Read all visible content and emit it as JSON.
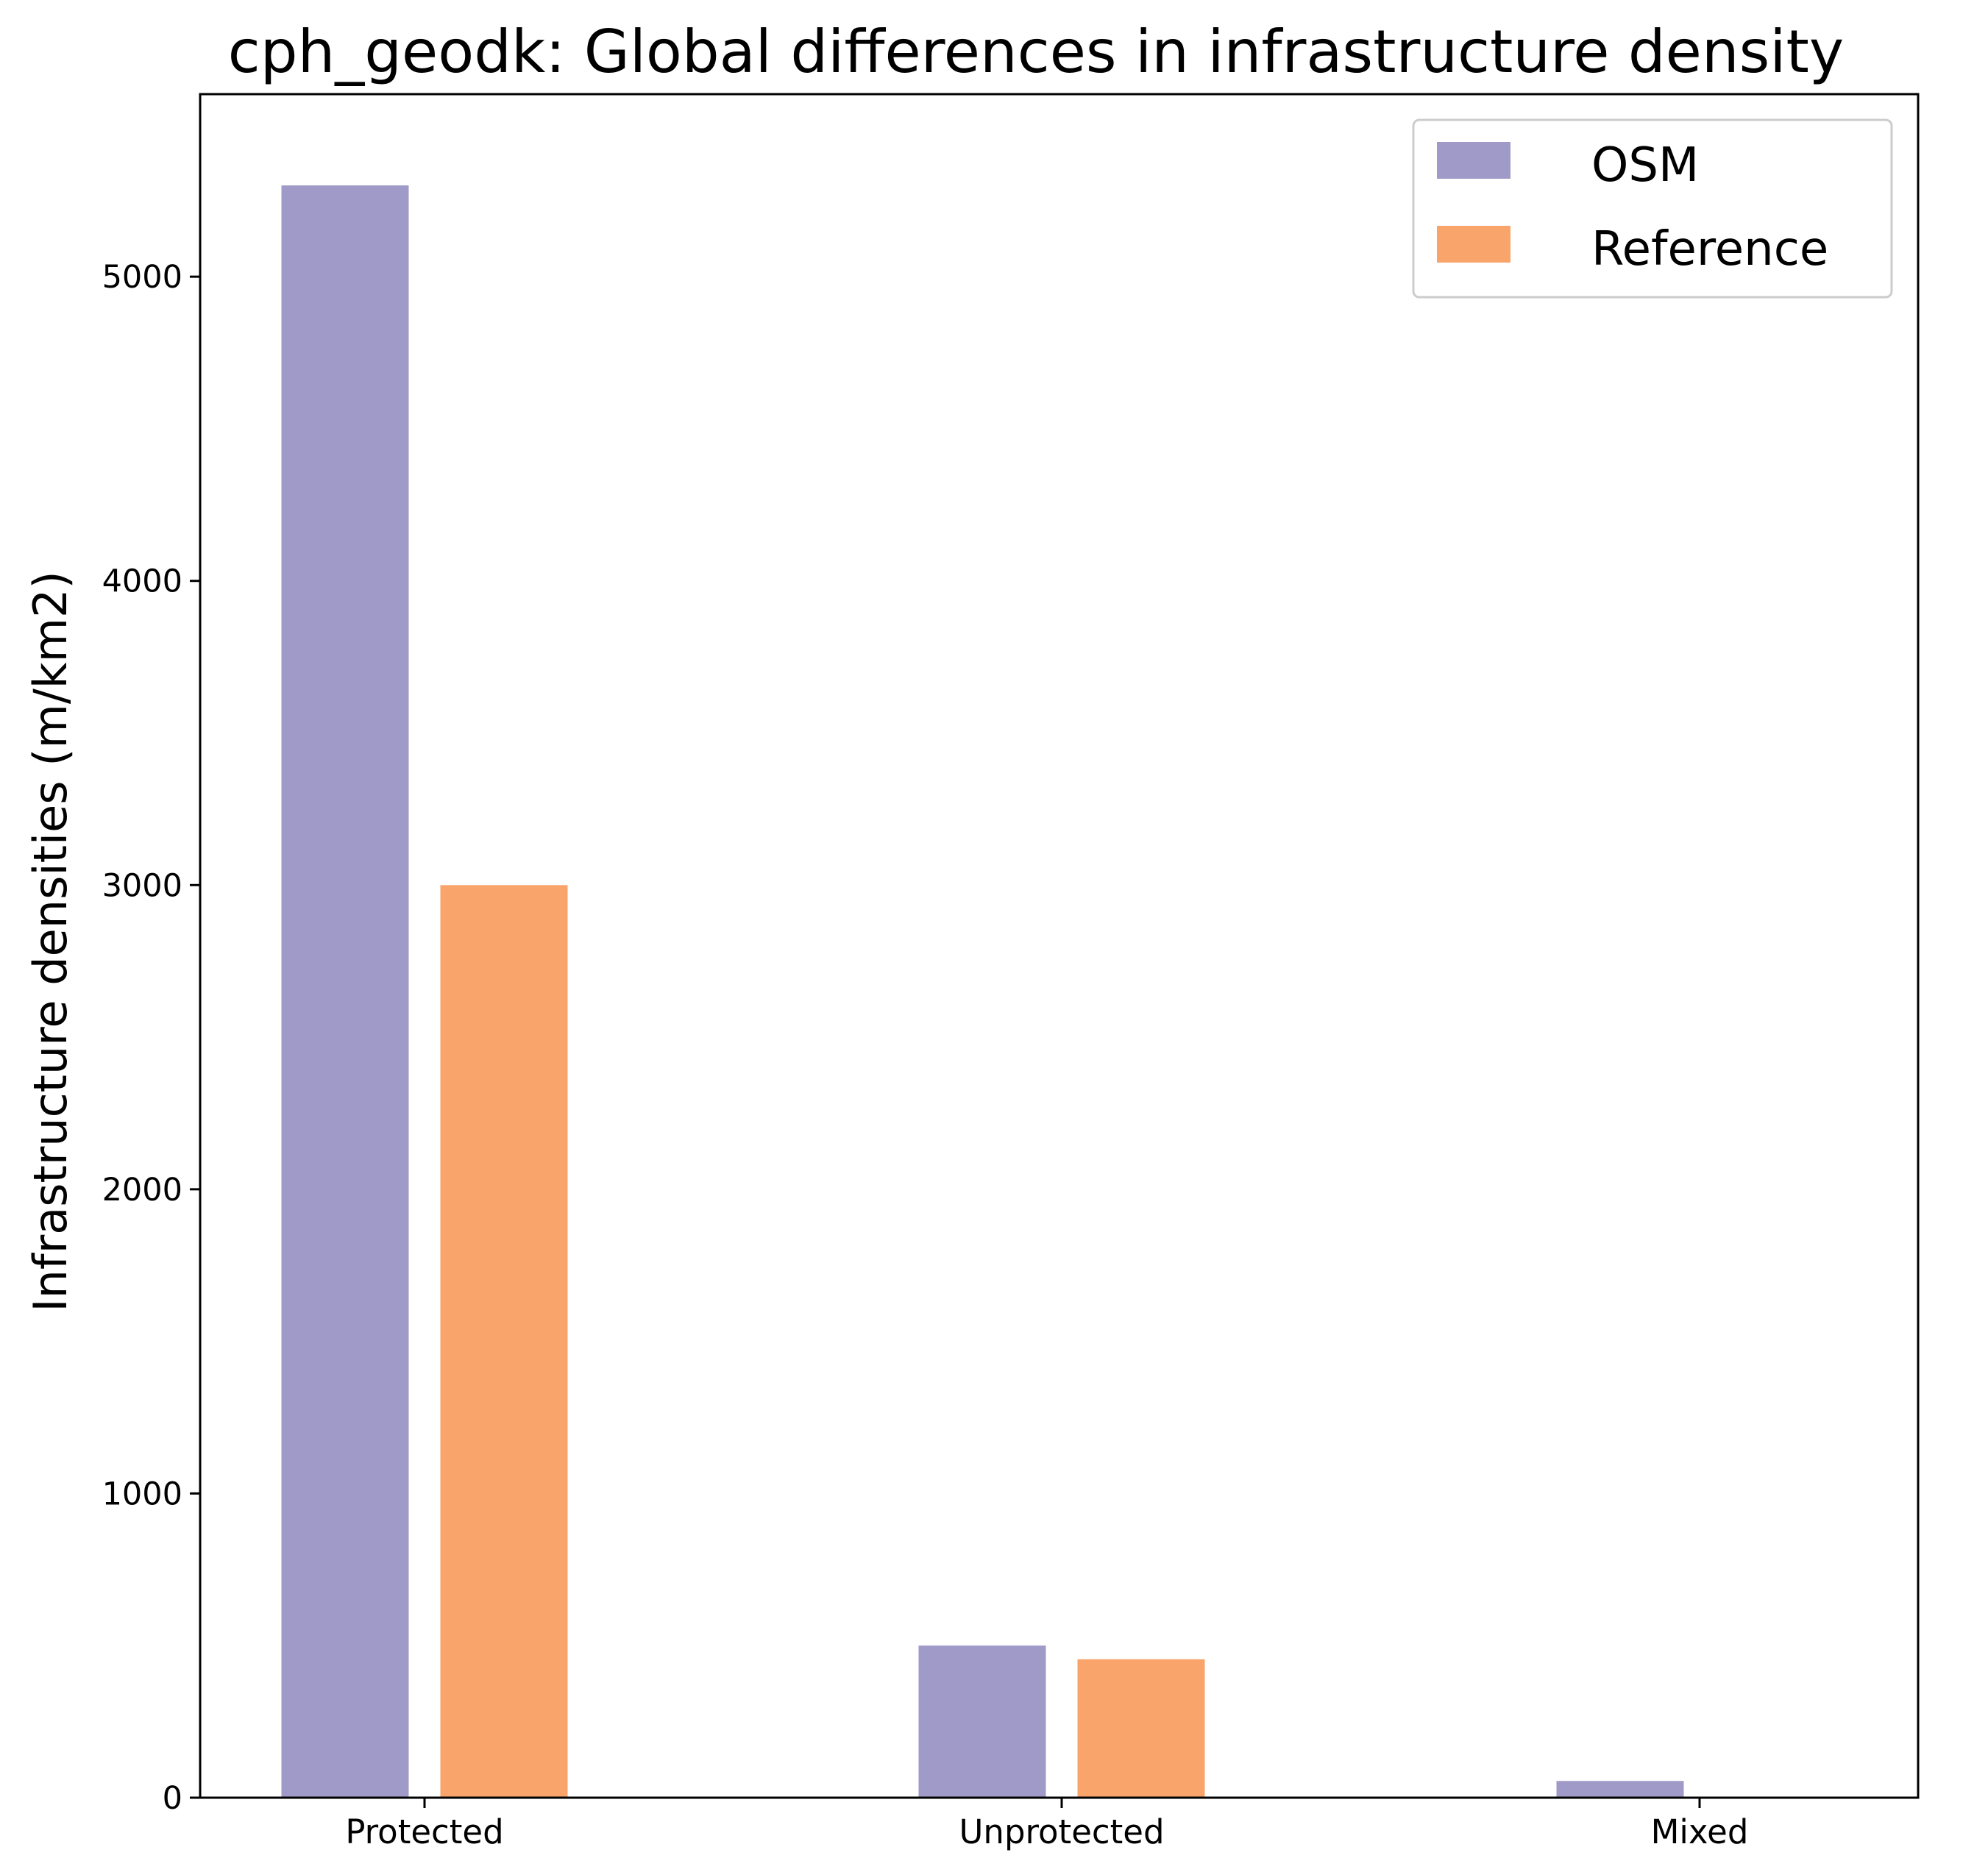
{
  "chart_data": {
    "type": "bar",
    "title": "cph_geodk: Global differences in infrastructure density",
    "xlabel": "",
    "ylabel": "Infrastructure densities (m/km2)",
    "categories": [
      "Protected",
      "Unprotected",
      "Mixed"
    ],
    "series": [
      {
        "name": "OSM",
        "color": "#a09ac8",
        "values": [
          5300,
          500,
          55
        ]
      },
      {
        "name": "Reference",
        "color": "#f8a46a",
        "values": [
          3000,
          455,
          0
        ]
      }
    ],
    "ylim": [
      0,
      5600
    ],
    "yticks": [
      "0",
      "1000",
      "2000",
      "3000",
      "4000",
      "5000"
    ],
    "grid": false,
    "legend_position": "top-right"
  }
}
